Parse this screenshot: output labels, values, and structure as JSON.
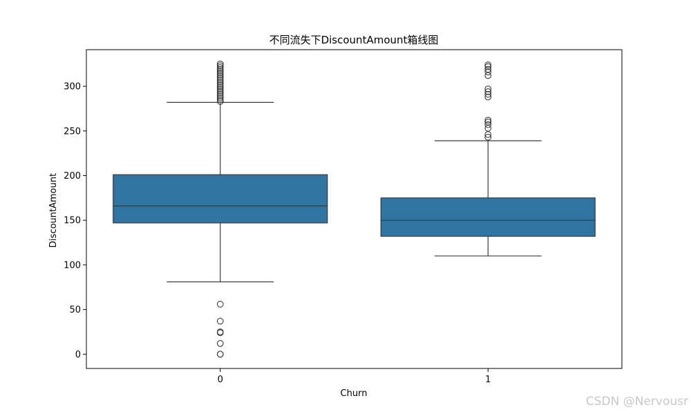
{
  "chart_data": {
    "type": "box",
    "title": "不同流失下DiscountAmount箱线图",
    "xlabel": "Churn",
    "ylabel": "DiscountAmount",
    "categories": [
      "0",
      "1"
    ],
    "ylim": [
      -16,
      341
    ],
    "yticks": [
      0,
      50,
      100,
      150,
      200,
      250,
      300
    ],
    "grid": false,
    "legend": "none",
    "box_color": "#3274a1",
    "line_color": "#3a3a3a",
    "boxes": [
      {
        "category": "0",
        "whisker_low": 81,
        "q1": 147,
        "median": 166,
        "q3": 201,
        "whisker_high": 282,
        "outliers": [
          0,
          0,
          12,
          24,
          25,
          37,
          56,
          283,
          285,
          287,
          289,
          291,
          293,
          295,
          297,
          299,
          301,
          303,
          305,
          307,
          309,
          311,
          313,
          315,
          317,
          319,
          321,
          323,
          325
        ]
      },
      {
        "category": "1",
        "whisker_low": 110,
        "q1": 132,
        "median": 150,
        "q3": 175,
        "whisker_high": 239,
        "outliers": [
          243,
          246,
          253,
          257,
          260,
          262,
          288,
          291,
          294,
          297,
          312,
          316,
          319,
          322,
          324
        ]
      }
    ]
  },
  "watermark": "CSDN @Nervousr"
}
